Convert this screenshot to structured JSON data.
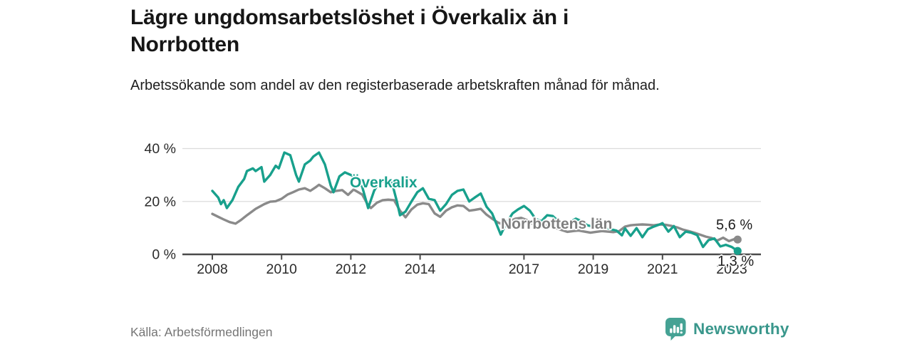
{
  "header": {
    "title": "Lägre ungdomsarbetslöshet i Överkalix än i Norrbotten",
    "subtitle": "Arbetssökande som andel av den registerbaserade arbetskraften månad för månad."
  },
  "footer": {
    "source": "Källa: Arbetsförmedlingen",
    "brand": "Newsworthy",
    "brand_color": "#3a978c",
    "logo_color": "#45a294"
  },
  "chart_data": {
    "type": "line",
    "title": "Lägre ungdomsarbetslöshet i Överkalix än i Norrbotten",
    "subtitle": "Arbetssökande som andel av den registerbaserade arbetskraften månad för månad.",
    "unit": "%",
    "xlabel": "",
    "ylabel": "",
    "ylim": [
      0,
      42
    ],
    "xlim": [
      2007.15,
      2023.85
    ],
    "grid": "horizontal",
    "grid_color": "#dcdcdc",
    "axis_color": "#4a4a4a",
    "tick_label_color": "#2b2b2b",
    "y_ticks": [
      {
        "value": 40,
        "label": "40 %"
      },
      {
        "value": 20,
        "label": "20 %"
      },
      {
        "value": 0,
        "label": "0 %"
      }
    ],
    "x_ticks": [
      {
        "year": 2008,
        "label": "2008"
      },
      {
        "year": 2010,
        "label": "2010"
      },
      {
        "year": 2012,
        "label": "2012"
      },
      {
        "year": 2014,
        "label": "2014"
      },
      {
        "year": 2017,
        "label": "2017"
      },
      {
        "year": 2019,
        "label": "2019"
      },
      {
        "year": 2021,
        "label": "2021"
      },
      {
        "year": 2023,
        "label": "2023"
      }
    ],
    "series": [
      {
        "name": "Överkalix",
        "color": "#18a08c",
        "end_label": "1,3 %",
        "end_value": 1.3,
        "points": [
          [
            2008.0,
            24
          ],
          [
            2008.17,
            21.5
          ],
          [
            2008.25,
            19
          ],
          [
            2008.33,
            20.5
          ],
          [
            2008.42,
            17.5
          ],
          [
            2008.58,
            20.5
          ],
          [
            2008.75,
            25.5
          ],
          [
            2008.92,
            28.5
          ],
          [
            2009.0,
            31.5
          ],
          [
            2009.17,
            32.5
          ],
          [
            2009.25,
            31.5
          ],
          [
            2009.42,
            33
          ],
          [
            2009.5,
            27.5
          ],
          [
            2009.67,
            30
          ],
          [
            2009.83,
            33.5
          ],
          [
            2009.92,
            32.5
          ],
          [
            2010.08,
            38.5
          ],
          [
            2010.25,
            37.5
          ],
          [
            2010.42,
            30
          ],
          [
            2010.5,
            27.5
          ],
          [
            2010.67,
            34
          ],
          [
            2010.83,
            35.5
          ],
          [
            2010.92,
            37
          ],
          [
            2011.08,
            38.5
          ],
          [
            2011.25,
            34
          ],
          [
            2011.42,
            26
          ],
          [
            2011.5,
            23.5
          ],
          [
            2011.67,
            29.5
          ],
          [
            2011.83,
            31
          ],
          [
            2012.0,
            30
          ],
          [
            2012.17,
            29
          ],
          [
            2012.33,
            25.5
          ],
          [
            2012.5,
            17.5
          ],
          [
            2012.67,
            24
          ],
          [
            2012.83,
            27.5
          ],
          [
            2013.0,
            27.5
          ],
          [
            2013.17,
            28
          ],
          [
            2013.33,
            20
          ],
          [
            2013.42,
            14.8
          ],
          [
            2013.58,
            16.2
          ],
          [
            2013.75,
            20
          ],
          [
            2013.92,
            23.5
          ],
          [
            2014.08,
            25
          ],
          [
            2014.25,
            21
          ],
          [
            2014.42,
            20.5
          ],
          [
            2014.58,
            16.5
          ],
          [
            2014.75,
            19
          ],
          [
            2014.92,
            22.5
          ],
          [
            2015.08,
            24
          ],
          [
            2015.25,
            24.5
          ],
          [
            2015.42,
            20
          ],
          [
            2015.58,
            21.5
          ],
          [
            2015.75,
            23
          ],
          [
            2015.92,
            18
          ],
          [
            2016.08,
            15.5
          ],
          [
            2016.25,
            10
          ],
          [
            2016.33,
            7.5
          ],
          [
            2016.5,
            12
          ],
          [
            2016.67,
            15.5
          ],
          [
            2016.83,
            17
          ],
          [
            2017.0,
            18.3
          ],
          [
            2017.17,
            16.5
          ],
          [
            2017.33,
            13.5
          ],
          [
            2017.5,
            12.5
          ],
          [
            2017.67,
            14.8
          ],
          [
            2017.83,
            14.5
          ],
          [
            2018.0,
            12.5
          ],
          [
            2018.17,
            11.5
          ],
          [
            2018.33,
            12.2
          ],
          [
            2018.5,
            13.5
          ],
          [
            2018.67,
            12.5
          ],
          [
            2018.83,
            11
          ],
          [
            2019.0,
            10.5
          ],
          [
            2019.17,
            11
          ],
          [
            2019.33,
            10.5
          ],
          [
            2019.5,
            9.5
          ],
          [
            2019.67,
            9
          ],
          [
            2019.83,
            7.2
          ],
          [
            2019.92,
            9.8
          ],
          [
            2020.08,
            7
          ],
          [
            2020.25,
            9.9
          ],
          [
            2020.42,
            6.5
          ],
          [
            2020.58,
            9.5
          ],
          [
            2020.75,
            10.5
          ],
          [
            2020.92,
            11.3
          ],
          [
            2021.0,
            11.8
          ],
          [
            2021.17,
            8.6
          ],
          [
            2021.33,
            10.7
          ],
          [
            2021.5,
            6.5
          ],
          [
            2021.67,
            8.6
          ],
          [
            2021.83,
            8.2
          ],
          [
            2022.0,
            7.3
          ],
          [
            2022.17,
            2.8
          ],
          [
            2022.33,
            5.4
          ],
          [
            2022.5,
            6
          ],
          [
            2022.67,
            3
          ],
          [
            2022.83,
            3.6
          ],
          [
            2023.0,
            2.8
          ],
          [
            2023.17,
            1.3
          ]
        ]
      },
      {
        "name": "Norrbottens län",
        "color": "#8a8a8a",
        "label_color": "#7f7f7f",
        "end_label": "5,6 %",
        "end_value": 5.6,
        "points": [
          [
            2008.0,
            15.3
          ],
          [
            2008.17,
            14.2
          ],
          [
            2008.33,
            13.2
          ],
          [
            2008.5,
            12.2
          ],
          [
            2008.67,
            11.6
          ],
          [
            2008.83,
            13
          ],
          [
            2009.0,
            14.8
          ],
          [
            2009.25,
            17.2
          ],
          [
            2009.5,
            19
          ],
          [
            2009.67,
            19.9
          ],
          [
            2009.83,
            20.1
          ],
          [
            2010.0,
            21
          ],
          [
            2010.17,
            22.6
          ],
          [
            2010.33,
            23.5
          ],
          [
            2010.5,
            24.5
          ],
          [
            2010.67,
            25
          ],
          [
            2010.83,
            24
          ],
          [
            2011.0,
            25.5
          ],
          [
            2011.08,
            26.3
          ],
          [
            2011.25,
            25
          ],
          [
            2011.42,
            23.5
          ],
          [
            2011.58,
            24
          ],
          [
            2011.75,
            24.3
          ],
          [
            2011.92,
            22.5
          ],
          [
            2012.08,
            24.5
          ],
          [
            2012.33,
            22.6
          ],
          [
            2012.5,
            18.5
          ],
          [
            2012.58,
            17.5
          ],
          [
            2012.75,
            19.5
          ],
          [
            2012.92,
            20.5
          ],
          [
            2013.08,
            20.7
          ],
          [
            2013.25,
            20.5
          ],
          [
            2013.42,
            16.5
          ],
          [
            2013.58,
            14
          ],
          [
            2013.75,
            17
          ],
          [
            2013.92,
            18.8
          ],
          [
            2014.08,
            19.3
          ],
          [
            2014.25,
            19
          ],
          [
            2014.42,
            15.5
          ],
          [
            2014.58,
            14.2
          ],
          [
            2014.75,
            16.5
          ],
          [
            2014.92,
            17.8
          ],
          [
            2015.08,
            18.5
          ],
          [
            2015.25,
            18.3
          ],
          [
            2015.42,
            16.5
          ],
          [
            2015.58,
            16.8
          ],
          [
            2015.75,
            17.2
          ],
          [
            2015.92,
            15
          ],
          [
            2016.08,
            13.5
          ],
          [
            2016.25,
            12
          ],
          [
            2016.42,
            11.2
          ],
          [
            2016.58,
            12.5
          ],
          [
            2016.75,
            13.5
          ],
          [
            2016.92,
            13.8
          ],
          [
            2017.08,
            13
          ],
          [
            2017.25,
            11.5
          ],
          [
            2017.42,
            10.5
          ],
          [
            2017.58,
            10.8
          ],
          [
            2017.75,
            11
          ],
          [
            2017.92,
            10
          ],
          [
            2018.08,
            9.2
          ],
          [
            2018.25,
            8.5
          ],
          [
            2018.42,
            8.8
          ],
          [
            2018.58,
            9
          ],
          [
            2018.75,
            8.6
          ],
          [
            2018.92,
            8.2
          ],
          [
            2019.08,
            8.5
          ],
          [
            2019.25,
            8.8
          ],
          [
            2019.42,
            8.6
          ],
          [
            2019.58,
            8.4
          ],
          [
            2019.75,
            8.8
          ],
          [
            2019.92,
            10.5
          ],
          [
            2020.08,
            11
          ],
          [
            2020.25,
            11.2
          ],
          [
            2020.42,
            11.3
          ],
          [
            2020.58,
            11.2
          ],
          [
            2020.75,
            11
          ],
          [
            2020.92,
            11.3
          ],
          [
            2021.08,
            11.2
          ],
          [
            2021.25,
            10.8
          ],
          [
            2021.42,
            10.2
          ],
          [
            2021.58,
            9.4
          ],
          [
            2021.75,
            8.8
          ],
          [
            2021.92,
            8.2
          ],
          [
            2022.08,
            7.5
          ],
          [
            2022.25,
            6.7
          ],
          [
            2022.42,
            6.2
          ],
          [
            2022.58,
            5.2
          ],
          [
            2022.75,
            6.3
          ],
          [
            2022.92,
            5.0
          ],
          [
            2023.08,
            5.8
          ],
          [
            2023.17,
            5.6
          ]
        ]
      }
    ]
  }
}
